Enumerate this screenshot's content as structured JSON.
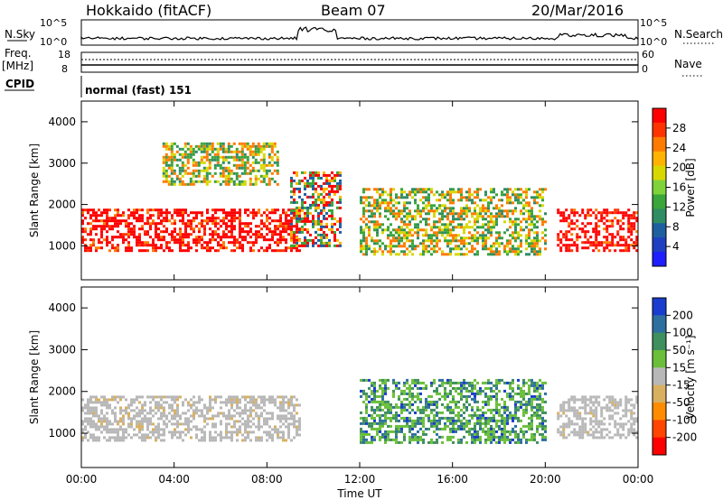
{
  "header": {
    "station": "Hokkaido (fitACF)",
    "beam": "Beam 07",
    "date": "20/Mar/2016"
  },
  "noise_panel": {
    "left_label": "N.Sky",
    "right_label": "N.Search",
    "tick_top": "10^5",
    "tick_bottom": "10^0"
  },
  "freq_panel": {
    "left_label_1": "Freq.",
    "left_label_2": "[MHz]",
    "right_label": "Nave",
    "left_ticks": [
      "18",
      "8"
    ],
    "right_ticks": [
      "60",
      "0"
    ]
  },
  "cpid": {
    "label": "CPID",
    "mode": "normal (fast) 151"
  },
  "chart_data": [
    {
      "type": "heatmap",
      "panel": "power",
      "ylabel": "Slant Range [km]",
      "ylim": [
        180,
        4500
      ],
      "yticks": [
        "1000",
        "2000",
        "3000",
        "4000"
      ],
      "colorbar_label": "Power [dB]",
      "colorbar_ticks": [
        "28",
        "24",
        "20",
        "16",
        "12",
        "8",
        "4"
      ],
      "colorbar_colors": [
        "#ff0000",
        "#ff3300",
        "#ff7b00",
        "#ffb300",
        "#d8d800",
        "#7fd33a",
        "#39a53a",
        "#2f8d63",
        "#1e5fa0",
        "#1f3fc2",
        "#1e1eff"
      ],
      "regions": [
        {
          "name": "morning echo band",
          "x": [
            0,
            9.4
          ],
          "y": [
            900,
            1900
          ],
          "level": "high"
        },
        {
          "name": "upper weak echoes",
          "x": [
            3.5,
            8.5
          ],
          "y": [
            2500,
            3500
          ],
          "level": "medium"
        },
        {
          "name": "midday structure",
          "x": [
            9.0,
            11.2
          ],
          "y": [
            1000,
            2800
          ],
          "level": "mixed"
        },
        {
          "name": "afternoon echoes",
          "x": [
            12.0,
            20.0
          ],
          "y": [
            800,
            2400
          ],
          "level": "medium"
        },
        {
          "name": "evening echo band",
          "x": [
            20.5,
            24.0
          ],
          "y": [
            900,
            1900
          ],
          "level": "high"
        }
      ]
    },
    {
      "type": "heatmap",
      "panel": "velocity",
      "ylabel": "Slant Range [km]",
      "ylim": [
        180,
        4500
      ],
      "yticks": [
        "1000",
        "2000",
        "3000",
        "4000"
      ],
      "colorbar_label": "Velocity [m s⁻¹]",
      "colorbar_ticks": [
        "200",
        "100",
        "50",
        "15",
        "-15",
        "-50",
        "-100",
        "-200"
      ],
      "colorbar_colors": [
        "#1a3ccf",
        "#2f6fa0",
        "#3f8f5f",
        "#6bbf3a",
        "#b8b8b8",
        "#d8b060",
        "#ff8c00",
        "#ff4500",
        "#ff0000"
      ],
      "regions": [
        {
          "name": "ground scatter morning",
          "x": [
            0,
            9.4
          ],
          "y": [
            800,
            1900
          ],
          "velocity": "near zero"
        },
        {
          "name": "ground scatter evening",
          "x": [
            20.5,
            24.0
          ],
          "y": [
            900,
            1900
          ],
          "velocity": "near zero"
        },
        {
          "name": "positive velocity echoes",
          "x": [
            12.0,
            20.0
          ],
          "y": [
            800,
            2300
          ],
          "velocity": "15 to 200"
        }
      ]
    }
  ],
  "time_axis": {
    "label": "Time UT",
    "ticks": [
      "00:00",
      "04:00",
      "08:00",
      "12:00",
      "16:00",
      "20:00",
      "00:00"
    ]
  }
}
